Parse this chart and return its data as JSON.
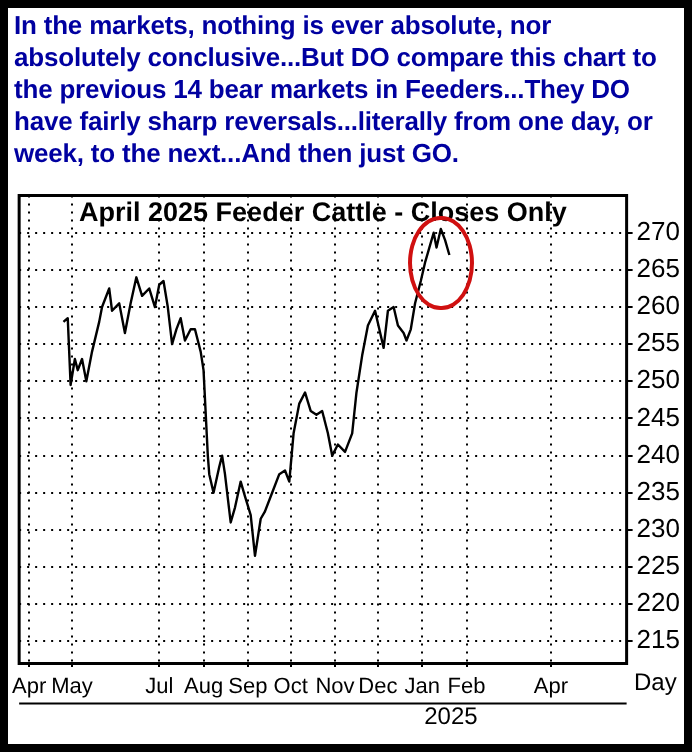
{
  "chart_data": {
    "type": "line",
    "subtitle": "In the markets, nothing is ever absolute, nor absolutely conclusive...But DO compare this chart to the previous 14 bear markets in Feeders...They DO have fairly sharp reversals...literally from one day, or week, to the next...And then just GO.",
    "title": "April 2025 Feeder Cattle - Closes Only",
    "xlabel": "Day",
    "annotations": [
      "2025"
    ],
    "x": [
      "2024-04-25",
      "2024-04-28",
      "2024-04-30",
      "2024-05-03",
      "2024-05-05",
      "2024-05-08",
      "2024-05-11",
      "2024-05-15",
      "2024-05-20",
      "2024-05-22",
      "2024-05-27",
      "2024-05-29",
      "2024-06-03",
      "2024-06-07",
      "2024-06-11",
      "2024-06-15",
      "2024-06-19",
      "2024-06-24",
      "2024-06-28",
      "2024-07-01",
      "2024-07-04",
      "2024-07-07",
      "2024-07-10",
      "2024-07-13",
      "2024-07-16",
      "2024-07-19",
      "2024-07-23",
      "2024-07-26",
      "2024-07-30",
      "2024-08-01",
      "2024-08-04",
      "2024-08-05",
      "2024-08-08",
      "2024-08-12",
      "2024-08-14",
      "2024-08-16",
      "2024-08-20",
      "2024-08-23",
      "2024-08-27",
      "2024-08-30",
      "2024-09-03",
      "2024-09-06",
      "2024-09-10",
      "2024-09-13",
      "2024-09-18",
      "2024-09-23",
      "2024-09-27",
      "2024-09-30",
      "2024-10-03",
      "2024-10-07",
      "2024-10-11",
      "2024-10-15",
      "2024-10-19",
      "2024-10-23",
      "2024-10-27",
      "2024-10-30",
      "2024-11-03",
      "2024-11-08",
      "2024-11-13",
      "2024-11-16",
      "2024-11-20",
      "2024-11-24",
      "2024-11-29",
      "2024-12-02",
      "2024-12-05",
      "2024-12-08",
      "2024-12-12",
      "2024-12-15",
      "2024-12-19",
      "2024-12-21",
      "2024-12-24",
      "2024-12-27",
      "2024-12-31",
      "2025-01-03",
      "2025-01-06",
      "2025-01-09",
      "2025-01-11",
      "2025-01-14",
      "2025-01-17",
      "2025-01-20"
    ],
    "series": [
      {
        "color": "#000000",
        "values": [
          258,
          258.5,
          249.5,
          253,
          251.5,
          253,
          250,
          254,
          258,
          260,
          262.5,
          259.5,
          260.5,
          256.5,
          260.5,
          264,
          261.5,
          262.5,
          260,
          263,
          263.5,
          260,
          255,
          257,
          258.5,
          255.5,
          257,
          257,
          254,
          251.5,
          240,
          237.5,
          235,
          238.5,
          240,
          237.5,
          231,
          233,
          236.5,
          234.5,
          232,
          226.5,
          231.5,
          232.5,
          235,
          237.5,
          238,
          236.5,
          243,
          247,
          248.5,
          246,
          245.5,
          246,
          243,
          240,
          241.5,
          240.5,
          243,
          248.5,
          253.5,
          257.5,
          259.5,
          257,
          254.5,
          259.5,
          260,
          257.5,
          256.5,
          255.5,
          257,
          260.5,
          263.5,
          266,
          268,
          270,
          268,
          270.5,
          269,
          267
        ]
      }
    ],
    "xlim": [
      "2024-03-25",
      "2025-05-24"
    ],
    "xticks": [
      {
        "value": "2024-04-01",
        "label": "Apr"
      },
      {
        "value": "2024-05-01",
        "label": "May"
      },
      {
        "value": "2024-07-01",
        "label": "Jul"
      },
      {
        "value": "2024-08-01",
        "label": "Aug"
      },
      {
        "value": "2024-09-01",
        "label": "Sep"
      },
      {
        "value": "2024-10-01",
        "label": "Oct"
      },
      {
        "value": "2024-11-01",
        "label": "Nov"
      },
      {
        "value": "2024-12-01",
        "label": "Dec"
      },
      {
        "value": "2025-01-01",
        "label": "Jan"
      },
      {
        "value": "2025-02-01",
        "label": "Feb"
      },
      {
        "value": "2025-04-01",
        "label": "Apr"
      }
    ],
    "ylim": [
      212,
      275
    ],
    "yticks": [
      215,
      220,
      225,
      230,
      235,
      240,
      245,
      250,
      255,
      260,
      265,
      270
    ],
    "grid": true,
    "marker": "none",
    "line_style": "solid"
  }
}
